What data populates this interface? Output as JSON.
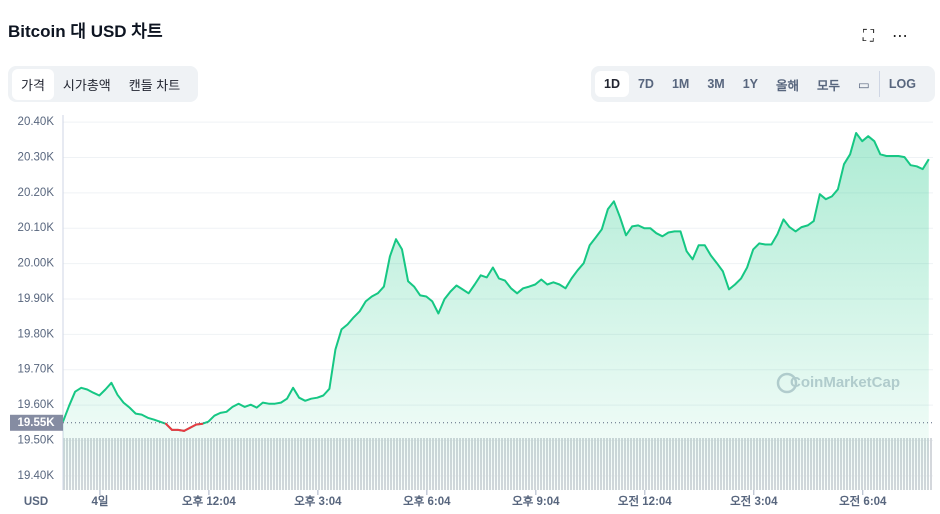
{
  "header": {
    "title": "Bitcoin 대 USD 차트"
  },
  "tabs": [
    "가격",
    "시가총액",
    "캔들 차트"
  ],
  "ranges": [
    "1D",
    "7D",
    "1M",
    "3M",
    "1Y",
    "올해",
    "모두"
  ],
  "log_button": "LOG",
  "watermark": "CoinMarketCap",
  "chart_data": {
    "type": "line",
    "y_unit_label": "USD",
    "color": "#16c784",
    "below_color": "#ea3943",
    "reference": {
      "value": 19550,
      "label": "19.55K"
    },
    "xlim": [
      483,
      1920
    ],
    "ylim": [
      19360,
      20420
    ],
    "xticks": [
      {
        "value": 544,
        "label": "4일"
      },
      {
        "value": 724,
        "label": "오후 12:04"
      },
      {
        "value": 904,
        "label": "오후 3:04"
      },
      {
        "value": 1084,
        "label": "오후 6:04"
      },
      {
        "value": 1264,
        "label": "오후 9:04"
      },
      {
        "value": 1444,
        "label": "오전 12:04"
      },
      {
        "value": 1624,
        "label": "오전 3:04"
      },
      {
        "value": 1804,
        "label": "오전 6:04"
      }
    ],
    "yticks": [
      {
        "value": 19400,
        "label": "19.40K"
      },
      {
        "value": 19500,
        "label": "19.50K"
      },
      {
        "value": 19600,
        "label": "19.60K"
      },
      {
        "value": 19700,
        "label": "19.70K"
      },
      {
        "value": 19800,
        "label": "19.80K"
      },
      {
        "value": 19900,
        "label": "19.90K"
      },
      {
        "value": 20000,
        "label": "20.00K"
      },
      {
        "value": 20100,
        "label": "20.10K"
      },
      {
        "value": 20200,
        "label": "20.20K"
      },
      {
        "value": 20300,
        "label": "20.30K"
      },
      {
        "value": 20400,
        "label": "20.40K"
      }
    ],
    "grid": true,
    "x": [
      483,
      493,
      503,
      513,
      523,
      533,
      543,
      553,
      563,
      573,
      583,
      593,
      603,
      613,
      623,
      633,
      643,
      653,
      663,
      673,
      683,
      693,
      703,
      713,
      723,
      733,
      743,
      753,
      763,
      773,
      783,
      793,
      803,
      813,
      823,
      833,
      843,
      853,
      863,
      873,
      883,
      893,
      903,
      913,
      923,
      933,
      943,
      953,
      963,
      973,
      983,
      993,
      1003,
      1013,
      1023,
      1033,
      1043,
      1053,
      1063,
      1073,
      1083,
      1093,
      1103,
      1113,
      1123,
      1133,
      1143,
      1153,
      1163,
      1173,
      1183,
      1193,
      1203,
      1213,
      1223,
      1233,
      1243,
      1253,
      1263,
      1273,
      1283,
      1293,
      1303,
      1313,
      1323,
      1333,
      1343,
      1353,
      1363,
      1373,
      1383,
      1393,
      1403,
      1413,
      1423,
      1433,
      1443,
      1453,
      1463,
      1473,
      1483,
      1493,
      1503,
      1513,
      1523,
      1533,
      1543,
      1553,
      1563,
      1573,
      1583,
      1593,
      1603,
      1613,
      1623,
      1633,
      1643,
      1653,
      1663,
      1673,
      1683,
      1693,
      1703,
      1713,
      1723,
      1733,
      1743,
      1753,
      1763,
      1773,
      1783,
      1793,
      1803,
      1813,
      1823,
      1833,
      1843,
      1853,
      1863,
      1873,
      1883,
      1893,
      1903,
      1913
    ],
    "values": [
      19553,
      19598,
      19638,
      19649,
      19644,
      19635,
      19627,
      19644,
      19663,
      19629,
      19607,
      19593,
      19576,
      19573,
      19564,
      19559,
      19553,
      19547,
      19530,
      19530,
      19527,
      19536,
      19545,
      19547,
      19553,
      19570,
      19578,
      19581,
      19595,
      19604,
      19595,
      19601,
      19593,
      19607,
      19604,
      19604,
      19607,
      19618,
      19649,
      19621,
      19612,
      19618,
      19621,
      19627,
      19646,
      19757,
      19814,
      19828,
      19848,
      19865,
      19893,
      19907,
      19916,
      19935,
      20020,
      20069,
      20040,
      19950,
      19935,
      19910,
      19907,
      19893,
      19859,
      19899,
      19921,
      19938,
      19927,
      19916,
      19941,
      19967,
      19961,
      19989,
      19958,
      19952,
      19930,
      19916,
      19930,
      19935,
      19941,
      19955,
      19941,
      19947,
      19941,
      19930,
      19958,
      19981,
      20001,
      20052,
      20074,
      20097,
      20154,
      20176,
      20131,
      20080,
      20105,
      20108,
      20100,
      20100,
      20086,
      20077,
      20088,
      20091,
      20091,
      20035,
      20012,
      20052,
      20052,
      20023,
      20001,
      19978,
      19927,
      19941,
      19958,
      19989,
      20040,
      20057,
      20054,
      20054,
      20083,
      20125,
      20103,
      20091,
      20103,
      20108,
      20120,
      20196,
      20182,
      20190,
      20210,
      20281,
      20309,
      20369,
      20346,
      20360,
      20346,
      20309,
      20304,
      20304,
      20304,
      20301,
      20278,
      20275,
      20267,
      20295
    ]
  }
}
